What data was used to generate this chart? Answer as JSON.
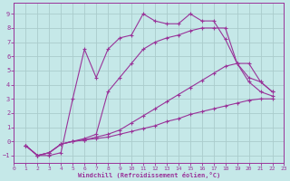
{
  "xlabel": "Windchill (Refroidissement éolien,°C)",
  "bg_color": "#c5e8e8",
  "grid_color": "#aacccc",
  "line_color": "#993399",
  "xlim": [
    0,
    23
  ],
  "ylim": [
    -1.5,
    9.8
  ],
  "xticks": [
    0,
    1,
    2,
    3,
    4,
    5,
    6,
    7,
    8,
    9,
    10,
    11,
    12,
    13,
    14,
    15,
    16,
    17,
    18,
    19,
    20,
    21,
    22,
    23
  ],
  "yticks": [
    -1,
    0,
    1,
    2,
    3,
    4,
    5,
    6,
    7,
    8,
    9
  ],
  "lines": [
    {
      "x": [
        1,
        2,
        3,
        4,
        5,
        6,
        7,
        8,
        9,
        10,
        11,
        12,
        13,
        14,
        15,
        16,
        17,
        18,
        19,
        20,
        21,
        22
      ],
      "y": [
        -0.3,
        -1.0,
        -1.0,
        -0.8,
        3.0,
        6.5,
        4.5,
        6.5,
        7.3,
        7.5,
        9.0,
        8.5,
        8.3,
        8.3,
        9.0,
        8.5,
        8.5,
        7.2,
        5.5,
        4.2,
        3.5,
        3.2
      ]
    },
    {
      "x": [
        1,
        2,
        3,
        4,
        5,
        6,
        7,
        8,
        9,
        10,
        11,
        12,
        13,
        14,
        15,
        16,
        17,
        18,
        19,
        20,
        21,
        22
      ],
      "y": [
        -0.3,
        -1.0,
        -0.8,
        -0.2,
        0.0,
        0.2,
        0.5,
        3.5,
        4.5,
        5.5,
        6.5,
        7.0,
        7.3,
        7.5,
        7.8,
        8.0,
        8.0,
        8.0,
        5.5,
        4.5,
        4.2,
        3.5
      ]
    },
    {
      "x": [
        1,
        2,
        3,
        4,
        5,
        6,
        7,
        8,
        9,
        10,
        11,
        12,
        13,
        14,
        15,
        16,
        17,
        18,
        19,
        20,
        21,
        22
      ],
      "y": [
        -0.3,
        -1.0,
        -0.8,
        -0.2,
        0.0,
        0.1,
        0.3,
        0.5,
        0.8,
        1.3,
        1.8,
        2.3,
        2.8,
        3.3,
        3.8,
        4.3,
        4.8,
        5.3,
        5.5,
        5.5,
        4.2,
        3.5
      ]
    },
    {
      "x": [
        1,
        2,
        3,
        4,
        5,
        6,
        7,
        8,
        9,
        10,
        11,
        12,
        13,
        14,
        15,
        16,
        17,
        18,
        19,
        20,
        21,
        22
      ],
      "y": [
        -0.3,
        -1.0,
        -0.8,
        -0.2,
        0.0,
        0.1,
        0.2,
        0.3,
        0.5,
        0.7,
        0.9,
        1.1,
        1.4,
        1.6,
        1.9,
        2.1,
        2.3,
        2.5,
        2.7,
        2.9,
        3.0,
        3.0
      ]
    }
  ]
}
